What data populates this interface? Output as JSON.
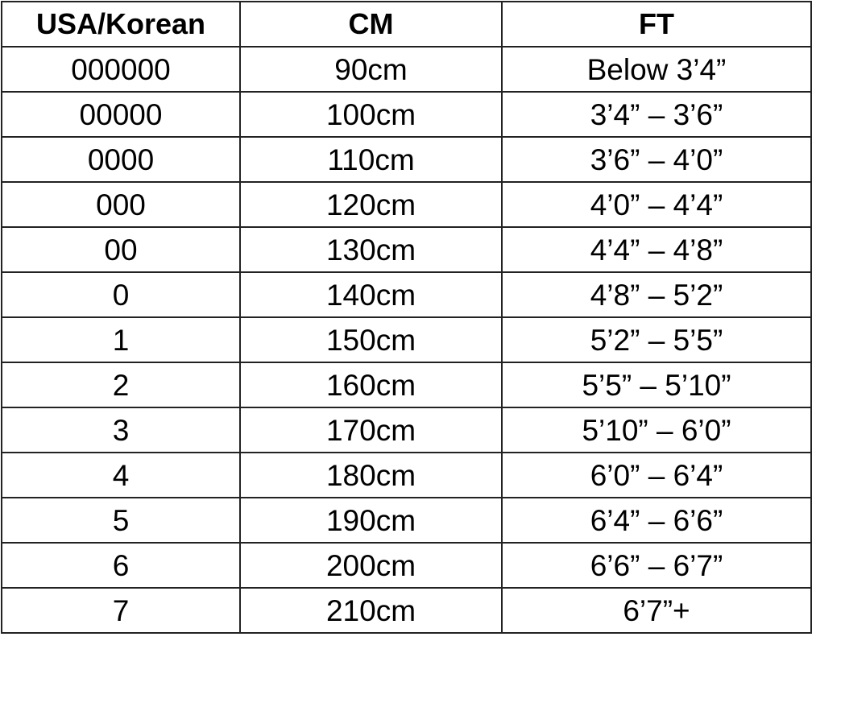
{
  "table": {
    "headers": [
      "USA/Korean",
      "CM",
      "FT"
    ],
    "rows": [
      [
        "000000",
        "90cm",
        "Below 3’4”"
      ],
      [
        "00000",
        "100cm",
        "3’4” – 3’6”"
      ],
      [
        "0000",
        "110cm",
        "3’6” – 4’0”"
      ],
      [
        "000",
        "120cm",
        "4’0” – 4’4”"
      ],
      [
        "00",
        "130cm",
        "4’4” – 4’8”"
      ],
      [
        "0",
        "140cm",
        "4’8” – 5’2”"
      ],
      [
        "1",
        "150cm",
        "5’2” – 5’5”"
      ],
      [
        "2",
        "160cm",
        "5’5” – 5’10”"
      ],
      [
        "3",
        "170cm",
        "5’10” – 6’0”"
      ],
      [
        "4",
        "180cm",
        "6’0” – 6’4”"
      ],
      [
        "5",
        "190cm",
        "6’4” – 6’6”"
      ],
      [
        "6",
        "200cm",
        "6’6” – 6’7”"
      ],
      [
        "7",
        "210cm",
        "6’7”+"
      ]
    ]
  }
}
